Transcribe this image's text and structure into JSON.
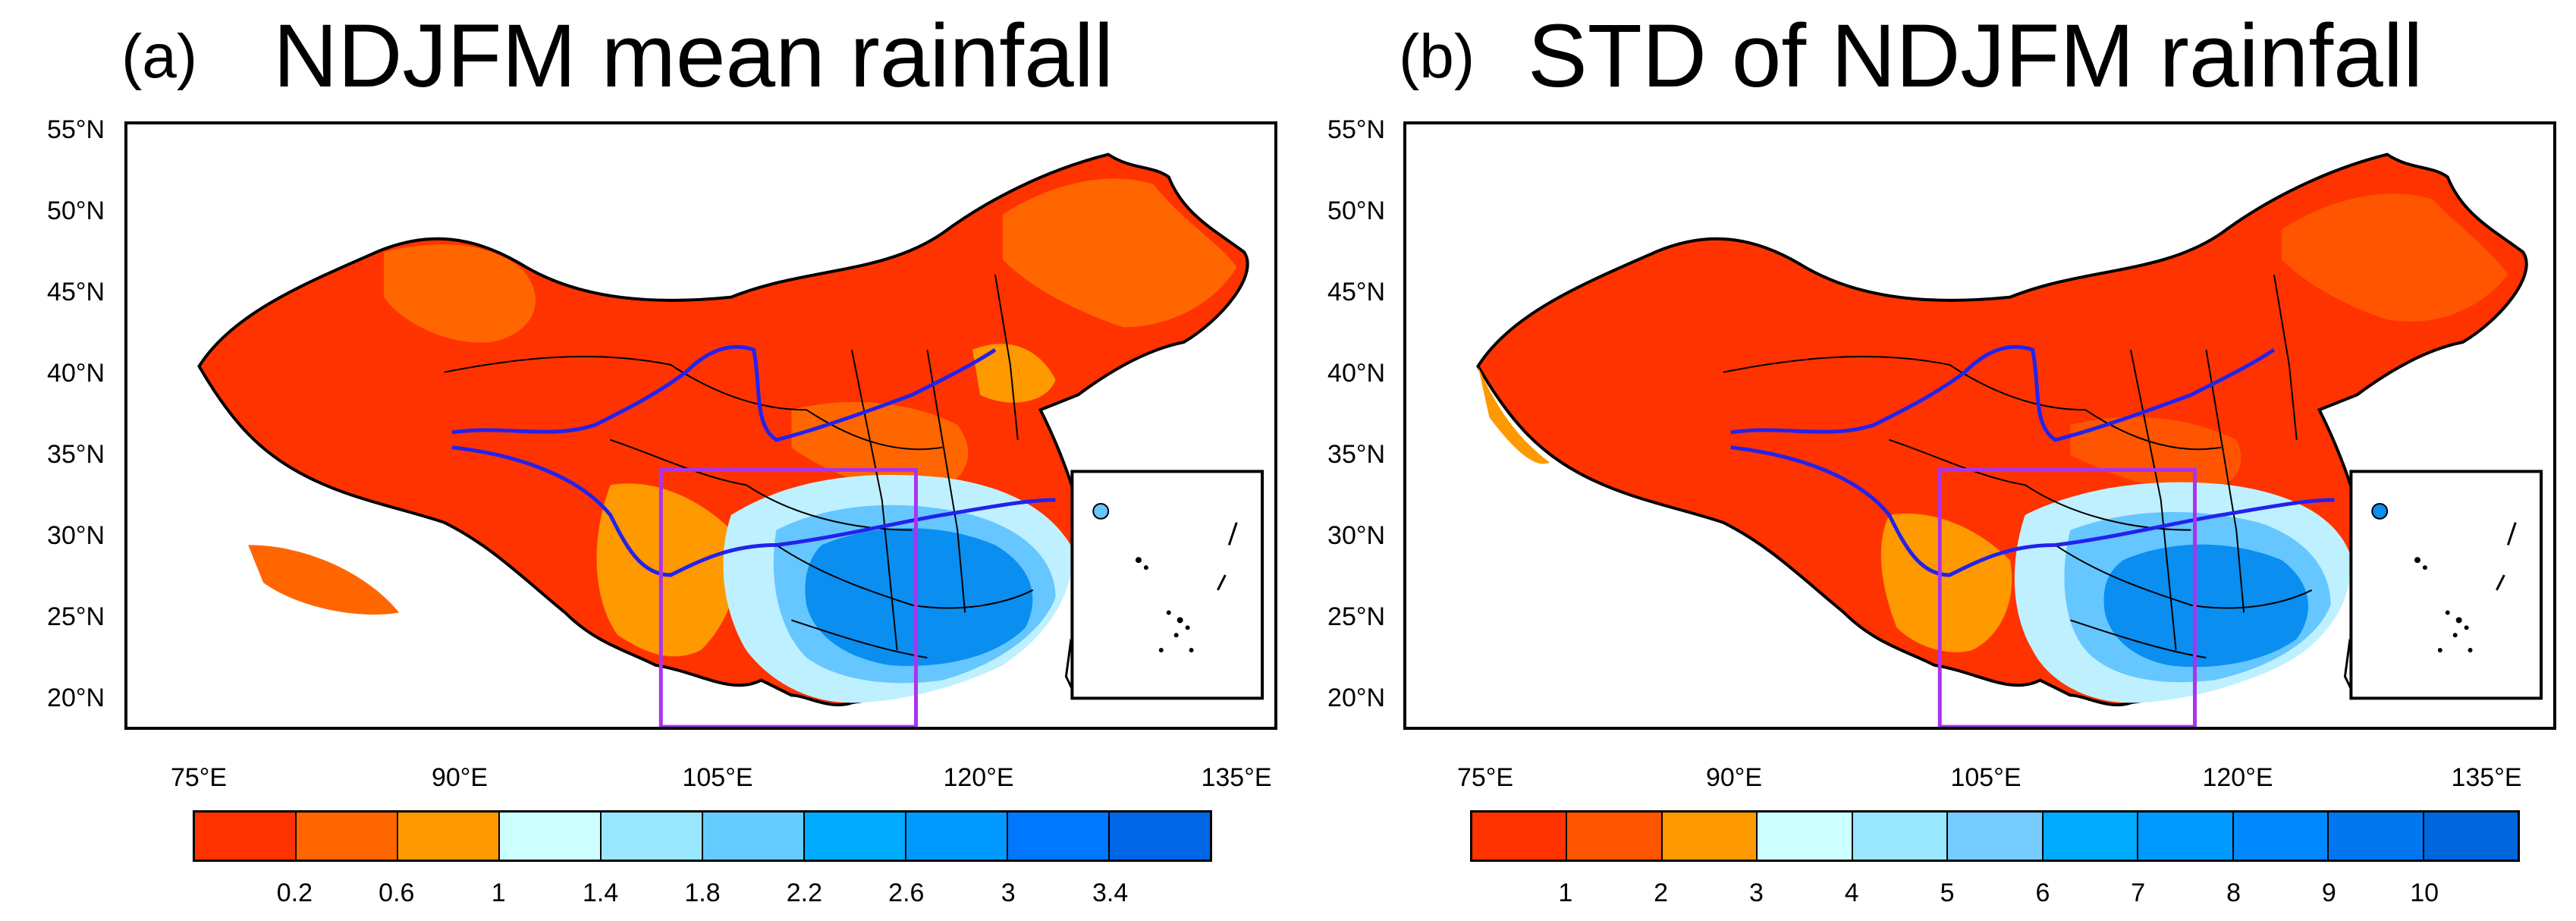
{
  "panels": [
    {
      "letter": "(a)",
      "title": "NDJFM mean rainfall",
      "lat_labels": [
        "55°N",
        "50°N",
        "45°N",
        "40°N",
        "35°N",
        "30°N",
        "25°N",
        "20°N"
      ],
      "lon_labels": [
        "75°E",
        "90°E",
        "105°E",
        "120°E",
        "135°E"
      ],
      "colorbar": {
        "colors": [
          "#ff3300",
          "#ff6600",
          "#ff9900",
          "#ccffff",
          "#99e6ff",
          "#66ccff",
          "#00aaff",
          "#0099ff",
          "#0077ff",
          "#0066e6"
        ],
        "labels": [
          "0.2",
          "0.6",
          "1",
          "1.4",
          "1.8",
          "2.2",
          "2.6",
          "3",
          "3.4"
        ]
      }
    },
    {
      "letter": "(b)",
      "title": "STD of NDJFM rainfall",
      "lat_labels": [
        "55°N",
        "50°N",
        "45°N",
        "40°N",
        "35°N",
        "30°N",
        "25°N",
        "20°N"
      ],
      "lon_labels": [
        "75°E",
        "90°E",
        "105°E",
        "120°E",
        "135°E"
      ],
      "colorbar": {
        "colors": [
          "#ff3300",
          "#ff5500",
          "#ff9900",
          "#ccffff",
          "#99e6ff",
          "#77ccff",
          "#00aaff",
          "#0099ff",
          "#0088ff",
          "#0077ee",
          "#0066dd"
        ],
        "labels": [
          "1",
          "2",
          "3",
          "4",
          "5",
          "6",
          "7",
          "8",
          "9",
          "10"
        ]
      }
    }
  ],
  "map_colors": {
    "dry": "#ff3300",
    "semi_dry": "#ff6600",
    "moderate": "#ff9900",
    "wet_light": "#bff0ff",
    "wet_mid": "#66c6ff",
    "wet_high": "#0a8ef0",
    "river": "#2222ee",
    "study_box": "#aa33ee",
    "border": "#000000"
  }
}
